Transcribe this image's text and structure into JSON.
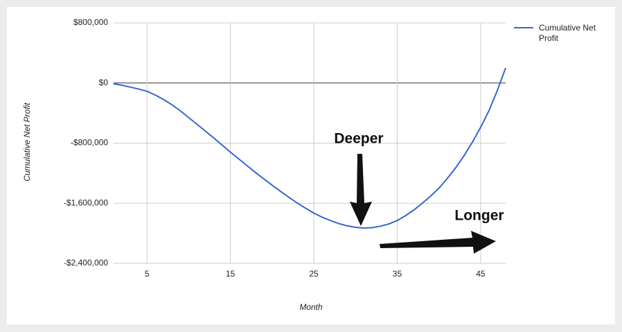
{
  "chart_data": {
    "type": "line",
    "x_label": "Month",
    "y_label": "Cumulative Net Profit",
    "x": [
      1,
      2,
      3,
      4,
      5,
      6,
      7,
      8,
      9,
      10,
      11,
      12,
      13,
      14,
      15,
      16,
      17,
      18,
      19,
      20,
      21,
      22,
      23,
      24,
      25,
      26,
      27,
      28,
      29,
      30,
      31,
      32,
      33,
      34,
      35,
      36,
      37,
      38,
      39,
      40,
      41,
      42,
      43,
      44,
      45,
      46,
      47,
      48
    ],
    "series": [
      {
        "name": "Cumulative Net Profit",
        "color": "#3366cc",
        "values": [
          -10000,
          -30000,
          -55000,
          -80000,
          -110000,
          -160000,
          -220000,
          -290000,
          -370000,
          -460000,
          -550000,
          -640000,
          -730000,
          -825000,
          -920000,
          -1010000,
          -1100000,
          -1190000,
          -1275000,
          -1360000,
          -1440000,
          -1520000,
          -1595000,
          -1665000,
          -1730000,
          -1785000,
          -1830000,
          -1870000,
          -1900000,
          -1920000,
          -1930000,
          -1925000,
          -1905000,
          -1875000,
          -1830000,
          -1765000,
          -1690000,
          -1600000,
          -1505000,
          -1400000,
          -1270000,
          -1130000,
          -970000,
          -790000,
          -590000,
          -370000,
          -100000,
          200000
        ]
      }
    ],
    "xlim": [
      1,
      48
    ],
    "xticks": [
      5,
      15,
      25,
      35,
      45
    ],
    "ylim": [
      -2400000,
      800000
    ],
    "yticks": [
      {
        "value": 800000,
        "label": "$800,000"
      },
      {
        "value": 0,
        "label": "$0"
      },
      {
        "value": -800000,
        "label": "-$800,000"
      },
      {
        "value": -1600000,
        "label": "-$1,600,000"
      },
      {
        "value": -2400000,
        "label": "-$2,400,000"
      }
    ],
    "grid": true,
    "legend": "right",
    "annotations": [
      "Deeper",
      "Longer"
    ]
  }
}
